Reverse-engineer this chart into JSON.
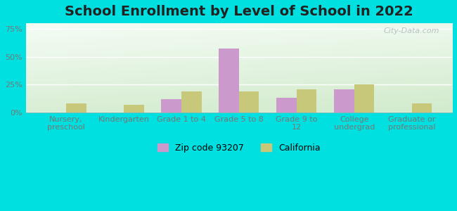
{
  "title": "School Enrollment by Level of School in 2022",
  "categories": [
    "Nursery,\npreschool",
    "Kindergarten",
    "Grade 1 to 4",
    "Grade 5 to 8",
    "Grade 9 to\n12",
    "College\nundergrad",
    "Graduate or\nprofessional"
  ],
  "zip_values": [
    0,
    0,
    12,
    57,
    13,
    21,
    0
  ],
  "ca_values": [
    8,
    7,
    19,
    19,
    21,
    25,
    8
  ],
  "zip_color": "#cc99cc",
  "ca_color": "#c8c87a",
  "ylim": [
    0,
    80
  ],
  "yticks": [
    0,
    25,
    50,
    75
  ],
  "ytick_labels": [
    "0%",
    "25%",
    "50%",
    "75%"
  ],
  "zip_label": "Zip code 93207",
  "ca_label": "California",
  "bg_outer": "#00e0e0",
  "bg_inner_top_left": "#f5faf5",
  "bg_inner_bottom_right": "#d8ecd4",
  "title_fontsize": 14,
  "axis_label_fontsize": 8,
  "watermark": "City-Data.com",
  "grid_color": "#ffffff",
  "tick_color": "#777777"
}
